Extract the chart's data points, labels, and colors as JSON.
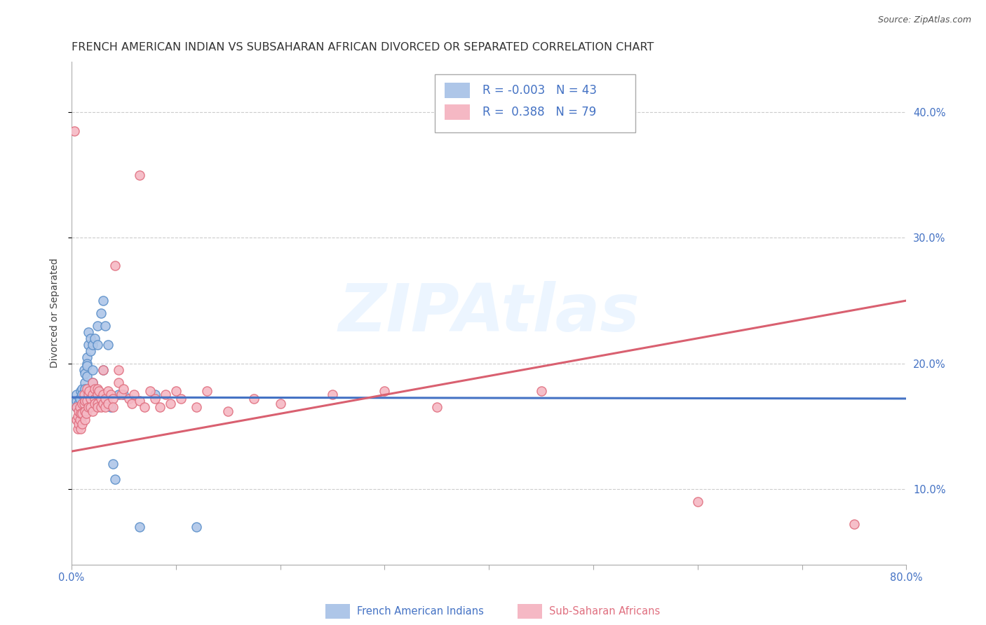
{
  "title": "FRENCH AMERICAN INDIAN VS SUBSAHARAN AFRICAN DIVORCED OR SEPARATED CORRELATION CHART",
  "source": "Source: ZipAtlas.com",
  "ylabel": "Divorced or Separated",
  "xlim": [
    0.0,
    0.8
  ],
  "ylim": [
    0.04,
    0.44
  ],
  "yticks": [
    0.1,
    0.2,
    0.3,
    0.4
  ],
  "ytick_labels": [
    "10.0%",
    "20.0%",
    "30.0%",
    "40.0%"
  ],
  "xticks_minor": [
    0.0,
    0.1,
    0.2,
    0.3,
    0.4,
    0.5,
    0.6,
    0.7,
    0.8
  ],
  "watermark_text": "ZIPAtlas",
  "blue_R": "-0.003",
  "blue_N": "43",
  "pink_R": "0.388",
  "pink_N": "79",
  "blue_label": "French American Indians",
  "pink_label": "Sub-Saharan Africans",
  "blue_fill": "#aec6e8",
  "pink_fill": "#f5b8c4",
  "blue_edge": "#5b8fc9",
  "pink_edge": "#e07080",
  "blue_line_color": "#4472C4",
  "pink_line_color": "#d96070",
  "blue_scatter": [
    [
      0.005,
      0.17
    ],
    [
      0.005,
      0.165
    ],
    [
      0.005,
      0.175
    ],
    [
      0.007,
      0.168
    ],
    [
      0.008,
      0.172
    ],
    [
      0.008,
      0.162
    ],
    [
      0.009,
      0.178
    ],
    [
      0.01,
      0.18
    ],
    [
      0.01,
      0.163
    ],
    [
      0.01,
      0.175
    ],
    [
      0.01,
      0.158
    ],
    [
      0.012,
      0.195
    ],
    [
      0.013,
      0.192
    ],
    [
      0.013,
      0.185
    ],
    [
      0.013,
      0.18
    ],
    [
      0.015,
      0.205
    ],
    [
      0.015,
      0.2
    ],
    [
      0.015,
      0.198
    ],
    [
      0.015,
      0.19
    ],
    [
      0.016,
      0.225
    ],
    [
      0.016,
      0.215
    ],
    [
      0.018,
      0.22
    ],
    [
      0.018,
      0.21
    ],
    [
      0.02,
      0.215
    ],
    [
      0.02,
      0.195
    ],
    [
      0.02,
      0.185
    ],
    [
      0.022,
      0.22
    ],
    [
      0.022,
      0.175
    ],
    [
      0.025,
      0.23
    ],
    [
      0.025,
      0.215
    ],
    [
      0.028,
      0.24
    ],
    [
      0.03,
      0.25
    ],
    [
      0.03,
      0.195
    ],
    [
      0.032,
      0.23
    ],
    [
      0.035,
      0.215
    ],
    [
      0.038,
      0.165
    ],
    [
      0.04,
      0.12
    ],
    [
      0.042,
      0.108
    ],
    [
      0.045,
      0.175
    ],
    [
      0.05,
      0.175
    ],
    [
      0.065,
      0.07
    ],
    [
      0.08,
      0.175
    ],
    [
      0.12,
      0.07
    ]
  ],
  "pink_scatter": [
    [
      0.003,
      0.385
    ],
    [
      0.005,
      0.165
    ],
    [
      0.005,
      0.155
    ],
    [
      0.006,
      0.158
    ],
    [
      0.006,
      0.148
    ],
    [
      0.007,
      0.162
    ],
    [
      0.007,
      0.152
    ],
    [
      0.008,
      0.165
    ],
    [
      0.008,
      0.155
    ],
    [
      0.009,
      0.16
    ],
    [
      0.009,
      0.148
    ],
    [
      0.01,
      0.168
    ],
    [
      0.01,
      0.152
    ],
    [
      0.01,
      0.16
    ],
    [
      0.012,
      0.175
    ],
    [
      0.012,
      0.168
    ],
    [
      0.013,
      0.162
    ],
    [
      0.013,
      0.155
    ],
    [
      0.013,
      0.17
    ],
    [
      0.014,
      0.16
    ],
    [
      0.015,
      0.18
    ],
    [
      0.015,
      0.17
    ],
    [
      0.016,
      0.175
    ],
    [
      0.016,
      0.165
    ],
    [
      0.017,
      0.178
    ],
    [
      0.018,
      0.172
    ],
    [
      0.018,
      0.165
    ],
    [
      0.02,
      0.175
    ],
    [
      0.02,
      0.162
    ],
    [
      0.02,
      0.185
    ],
    [
      0.022,
      0.18
    ],
    [
      0.022,
      0.172
    ],
    [
      0.022,
      0.168
    ],
    [
      0.025,
      0.175
    ],
    [
      0.025,
      0.168
    ],
    [
      0.025,
      0.18
    ],
    [
      0.025,
      0.165
    ],
    [
      0.026,
      0.178
    ],
    [
      0.028,
      0.172
    ],
    [
      0.028,
      0.165
    ],
    [
      0.03,
      0.195
    ],
    [
      0.03,
      0.175
    ],
    [
      0.03,
      0.168
    ],
    [
      0.032,
      0.172
    ],
    [
      0.032,
      0.165
    ],
    [
      0.035,
      0.178
    ],
    [
      0.035,
      0.168
    ],
    [
      0.038,
      0.175
    ],
    [
      0.04,
      0.172
    ],
    [
      0.04,
      0.165
    ],
    [
      0.042,
      0.278
    ],
    [
      0.045,
      0.195
    ],
    [
      0.045,
      0.185
    ],
    [
      0.048,
      0.175
    ],
    [
      0.05,
      0.18
    ],
    [
      0.055,
      0.172
    ],
    [
      0.058,
      0.168
    ],
    [
      0.06,
      0.175
    ],
    [
      0.065,
      0.35
    ],
    [
      0.065,
      0.17
    ],
    [
      0.07,
      0.165
    ],
    [
      0.075,
      0.178
    ],
    [
      0.08,
      0.172
    ],
    [
      0.085,
      0.165
    ],
    [
      0.09,
      0.175
    ],
    [
      0.095,
      0.168
    ],
    [
      0.1,
      0.178
    ],
    [
      0.105,
      0.172
    ],
    [
      0.12,
      0.165
    ],
    [
      0.13,
      0.178
    ],
    [
      0.15,
      0.162
    ],
    [
      0.175,
      0.172
    ],
    [
      0.2,
      0.168
    ],
    [
      0.25,
      0.175
    ],
    [
      0.3,
      0.178
    ],
    [
      0.35,
      0.165
    ],
    [
      0.45,
      0.178
    ],
    [
      0.6,
      0.09
    ],
    [
      0.75,
      0.072
    ]
  ],
  "blue_line_x": [
    0.0,
    0.8
  ],
  "blue_line_y": [
    0.173,
    0.172
  ],
  "pink_line_x": [
    0.0,
    0.8
  ],
  "pink_line_y": [
    0.13,
    0.25
  ],
  "background_color": "#ffffff",
  "grid_color": "#cccccc",
  "title_fontsize": 11.5,
  "axis_label_fontsize": 10,
  "tick_fontsize": 10.5,
  "tick_color": "#4472C4",
  "legend_text_color": "#4472C4"
}
